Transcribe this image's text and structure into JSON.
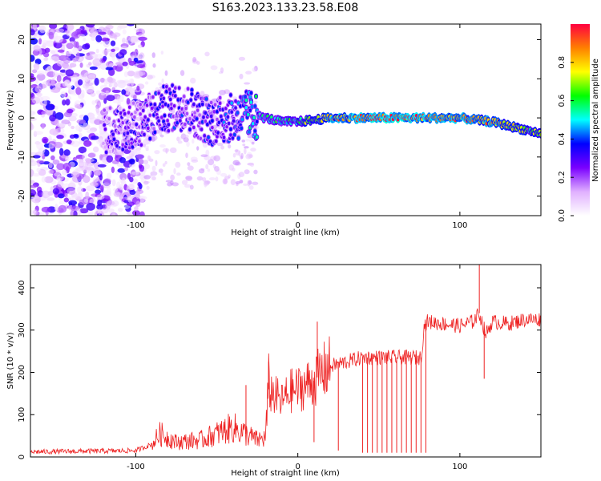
{
  "figure_title": "S163.2023.133.23.58.E08",
  "chart_data": [
    {
      "type": "heatmap",
      "title": "",
      "xlabel": "Height of straight line (km)",
      "ylabel": "Frequency (Hz)",
      "xlim": [
        -165,
        150
      ],
      "ylim": [
        -25,
        24
      ],
      "x_ticks": [
        -100,
        0,
        100
      ],
      "y_ticks": [
        -20,
        -10,
        0,
        10,
        20
      ],
      "colorbar": {
        "label": "Normalized spectral amplitude",
        "range": [
          0,
          1
        ],
        "ticks": [
          0.0,
          0.2,
          0.4,
          0.6,
          0.8
        ],
        "colormap": [
          "#ffffff",
          "#e0b0ff",
          "#7a00ff",
          "#0000ff",
          "#00ffff",
          "#00ff00",
          "#ffff00",
          "#ff8000",
          "#ff0040"
        ]
      },
      "noise_region": {
        "x": [
          -165,
          -95
        ],
        "freq": [
          -25,
          24
        ],
        "level": 0.3
      },
      "ridge": {
        "x": [
          -120,
          -100,
          -85,
          -70,
          -55,
          -40,
          -30,
          -20,
          -10,
          0,
          20,
          40,
          60,
          80,
          100,
          110,
          120,
          130,
          140,
          150
        ],
        "freq": [
          -3,
          -2,
          2,
          3,
          -1,
          0,
          1,
          0,
          -1,
          -1,
          0,
          0,
          0,
          0,
          0,
          -0.5,
          -1,
          -2,
          -3,
          -4
        ],
        "amplitude": [
          0.2,
          0.25,
          0.3,
          0.3,
          0.3,
          0.35,
          0.45,
          0.5,
          0.55,
          0.6,
          0.85,
          0.9,
          0.95,
          0.9,
          0.85,
          0.8,
          0.85,
          0.75,
          0.7,
          0.6
        ]
      }
    },
    {
      "type": "line",
      "title": "",
      "xlabel": "Height of straight line (km)",
      "ylabel": "SNR (10 * v/v)",
      "xlim": [
        -165,
        150
      ],
      "ylim": [
        0,
        455
      ],
      "x_ticks": [
        -100,
        0,
        100
      ],
      "y_ticks": [
        0,
        100,
        200,
        300,
        400
      ],
      "color": "#ee2222",
      "x": [
        -165,
        -100,
        -90,
        -85,
        -80,
        -75,
        -60,
        -50,
        -40,
        -35,
        -25,
        -20,
        -18,
        -10,
        -5,
        0,
        5,
        10,
        15,
        20,
        25,
        30,
        40,
        50,
        60,
        70,
        76,
        78,
        80,
        90,
        100,
        108,
        112,
        116,
        120,
        130,
        140,
        150
      ],
      "y": [
        12,
        15,
        30,
        55,
        45,
        35,
        40,
        55,
        70,
        60,
        40,
        45,
        160,
        130,
        155,
        160,
        170,
        180,
        200,
        215,
        220,
        225,
        235,
        235,
        235,
        235,
        235,
        310,
        320,
        315,
        310,
        320,
        340,
        290,
        320,
        315,
        325,
        325
      ],
      "spikes_up": [
        {
          "x": -18,
          "y": 225
        },
        {
          "x": 12,
          "y": 320
        },
        {
          "x": 112,
          "y": 455
        },
        {
          "x": -32,
          "y": 170
        }
      ],
      "spikes_down": [
        {
          "x": 40,
          "y": 10
        },
        {
          "x": 43,
          "y": 10
        },
        {
          "x": 46,
          "y": 10
        },
        {
          "x": 49,
          "y": 10
        },
        {
          "x": 52,
          "y": 10
        },
        {
          "x": 55,
          "y": 10
        },
        {
          "x": 58,
          "y": 10
        },
        {
          "x": 61,
          "y": 10
        },
        {
          "x": 64,
          "y": 10
        },
        {
          "x": 67,
          "y": 10
        },
        {
          "x": 70,
          "y": 10
        },
        {
          "x": 73,
          "y": 10
        },
        {
          "x": 76,
          "y": 10
        },
        {
          "x": 79,
          "y": 10
        },
        {
          "x": 25,
          "y": 15
        },
        {
          "x": 10,
          "y": 35
        },
        {
          "x": 115,
          "y": 185
        }
      ]
    }
  ]
}
